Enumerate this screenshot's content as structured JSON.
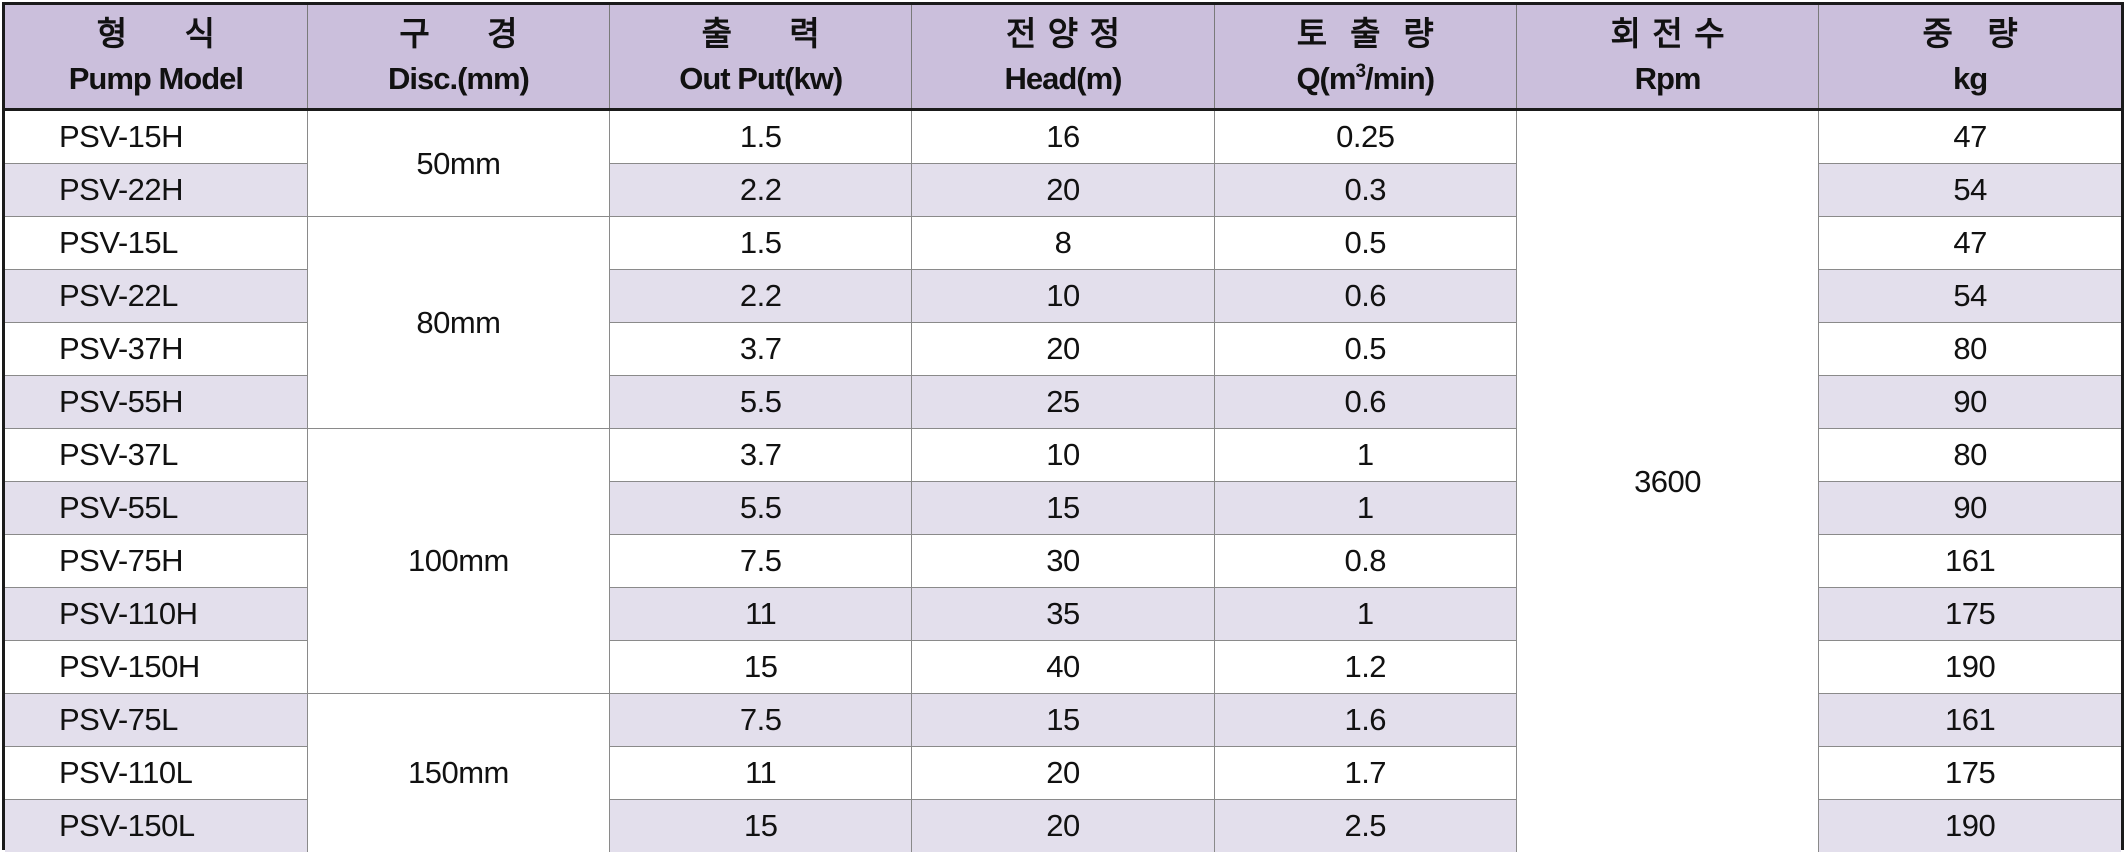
{
  "headers": [
    {
      "kr": "형     식",
      "en": "Pump Model"
    },
    {
      "kr": "구     경",
      "en": "Disc.(mm)"
    },
    {
      "kr": "출     력",
      "en": "Out Put(kw)"
    },
    {
      "kr": "전 양 정",
      "en": "Head(m)"
    },
    {
      "kr": "토  출  량",
      "en_pre": "Q(m",
      "en_sup": "3",
      "en_post": "/min)"
    },
    {
      "kr": "회 전 수",
      "en": "Rpm"
    },
    {
      "kr": "중   량",
      "en": "kg"
    }
  ],
  "rpm": "3600",
  "groups": [
    {
      "disc": "50mm"
    },
    {
      "disc": "80mm"
    },
    {
      "disc": "100mm"
    },
    {
      "disc": "150mm"
    }
  ],
  "rows": [
    {
      "model": "PSV-15H",
      "output": "1.5",
      "head": "16",
      "q": "0.25",
      "kg": "47"
    },
    {
      "model": "PSV-22H",
      "output": "2.2",
      "head": "20",
      "q": "0.3",
      "kg": "54"
    },
    {
      "model": "PSV-15L",
      "output": "1.5",
      "head": "8",
      "q": "0.5",
      "kg": "47"
    },
    {
      "model": "PSV-22L",
      "output": "2.2",
      "head": "10",
      "q": "0.6",
      "kg": "54"
    },
    {
      "model": "PSV-37H",
      "output": "3.7",
      "head": "20",
      "q": "0.5",
      "kg": "80"
    },
    {
      "model": "PSV-55H",
      "output": "5.5",
      "head": "25",
      "q": "0.6",
      "kg": "90"
    },
    {
      "model": "PSV-37L",
      "output": "3.7",
      "head": "10",
      "q": "1",
      "kg": "80"
    },
    {
      "model": "PSV-55L",
      "output": "5.5",
      "head": "15",
      "q": "1",
      "kg": "90"
    },
    {
      "model": "PSV-75H",
      "output": "7.5",
      "head": "30",
      "q": "0.8",
      "kg": "161"
    },
    {
      "model": "PSV-110H",
      "output": "11",
      "head": "35",
      "q": "1",
      "kg": "175"
    },
    {
      "model": "PSV-150H",
      "output": "15",
      "head": "40",
      "q": "1.2",
      "kg": "190"
    },
    {
      "model": "PSV-75L",
      "output": "7.5",
      "head": "15",
      "q": "1.6",
      "kg": "161"
    },
    {
      "model": "PSV-110L",
      "output": "11",
      "head": "20",
      "q": "1.7",
      "kg": "175"
    },
    {
      "model": "PSV-150L",
      "output": "15",
      "head": "20",
      "q": "2.5",
      "kg": "190"
    }
  ]
}
